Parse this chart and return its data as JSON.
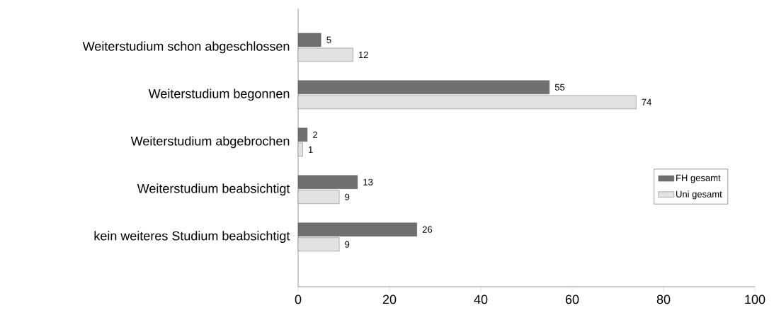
{
  "chart_data": {
    "type": "bar",
    "orientation": "horizontal",
    "categories": [
      "Weiterstudium schon abgeschlossen",
      "Weiterstudium begonnen",
      "Weiterstudium abgebrochen",
      "Weiterstudium beabsichtigt",
      "kein weiteres Studium beabsichtigt"
    ],
    "series": [
      {
        "name": "FH gesamt",
        "color": "#6f6f6f",
        "values": [
          5,
          55,
          2,
          13,
          26
        ]
      },
      {
        "name": "Uni gesamt",
        "color": "#e2e2e2",
        "values": [
          12,
          74,
          1,
          9,
          9
        ]
      }
    ],
    "xlim": [
      0,
      100
    ],
    "xticks": [
      0,
      20,
      40,
      60,
      80,
      100
    ],
    "data_labels": true,
    "grid": false,
    "legend": "right"
  }
}
